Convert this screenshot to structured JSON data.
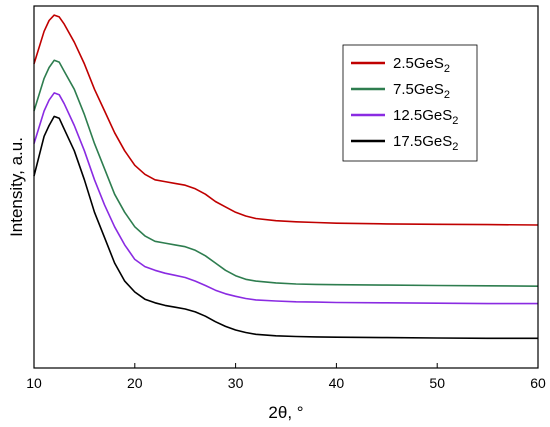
{
  "chart_data": {
    "type": "line",
    "title": "",
    "xlabel": "2θ, °",
    "ylabel": "Intensity, a.u.",
    "xlim": [
      10,
      60
    ],
    "ylim": [
      0,
      1
    ],
    "x_ticks": [
      "10",
      "20",
      "30",
      "40",
      "50",
      "60"
    ],
    "grid": false,
    "legend_position": "top-right",
    "series": [
      {
        "name": "2.5GeS",
        "subscript": "2",
        "color": "#c00000",
        "x": [
          10,
          11,
          11.5,
          12,
          12.5,
          13,
          14,
          15,
          16,
          17,
          18,
          19,
          20,
          21,
          22,
          23,
          24,
          25,
          26,
          27,
          28,
          29,
          30,
          31,
          32,
          34,
          36,
          38,
          40,
          45,
          50,
          55,
          60
        ],
        "y": [
          0.84,
          0.93,
          0.96,
          0.975,
          0.97,
          0.95,
          0.9,
          0.84,
          0.77,
          0.71,
          0.65,
          0.6,
          0.56,
          0.535,
          0.52,
          0.515,
          0.51,
          0.505,
          0.495,
          0.48,
          0.46,
          0.445,
          0.43,
          0.42,
          0.413,
          0.407,
          0.404,
          0.402,
          0.4,
          0.398,
          0.397,
          0.396,
          0.395
        ]
      },
      {
        "name": "7.5GeS",
        "subscript": "2",
        "color": "#2e7d4f",
        "x": [
          10,
          11,
          11.5,
          12,
          12.5,
          13,
          14,
          15,
          16,
          17,
          18,
          19,
          20,
          21,
          22,
          23,
          24,
          25,
          26,
          27,
          28,
          29,
          30,
          31,
          32,
          34,
          36,
          38,
          40,
          45,
          50,
          55,
          60
        ],
        "y": [
          0.71,
          0.8,
          0.83,
          0.85,
          0.845,
          0.82,
          0.77,
          0.7,
          0.62,
          0.55,
          0.48,
          0.43,
          0.39,
          0.365,
          0.35,
          0.345,
          0.34,
          0.335,
          0.325,
          0.31,
          0.29,
          0.27,
          0.255,
          0.245,
          0.24,
          0.235,
          0.232,
          0.231,
          0.23,
          0.229,
          0.228,
          0.227,
          0.226
        ]
      },
      {
        "name": "12.5GeS",
        "subscript": "2",
        "color": "#8a2be2",
        "x": [
          10,
          11,
          11.5,
          12,
          12.5,
          13,
          14,
          15,
          16,
          17,
          18,
          19,
          20,
          21,
          22,
          23,
          24,
          25,
          26,
          27,
          28,
          29,
          30,
          31,
          32,
          34,
          36,
          38,
          40,
          45,
          50,
          55,
          60
        ],
        "y": [
          0.62,
          0.71,
          0.74,
          0.76,
          0.755,
          0.73,
          0.67,
          0.6,
          0.52,
          0.45,
          0.39,
          0.34,
          0.3,
          0.28,
          0.27,
          0.262,
          0.256,
          0.25,
          0.24,
          0.228,
          0.215,
          0.205,
          0.198,
          0.192,
          0.188,
          0.185,
          0.183,
          0.182,
          0.181,
          0.18,
          0.179,
          0.178,
          0.178
        ]
      },
      {
        "name": "17.5GeS",
        "subscript": "2",
        "color": "#000000",
        "x": [
          10,
          11,
          11.5,
          12,
          12.5,
          13,
          14,
          15,
          16,
          17,
          18,
          19,
          20,
          21,
          22,
          23,
          24,
          25,
          26,
          27,
          28,
          29,
          30,
          31,
          32,
          34,
          36,
          38,
          40,
          45,
          50,
          55,
          60
        ],
        "y": [
          0.53,
          0.64,
          0.67,
          0.695,
          0.69,
          0.66,
          0.6,
          0.52,
          0.43,
          0.36,
          0.29,
          0.24,
          0.21,
          0.19,
          0.18,
          0.173,
          0.168,
          0.163,
          0.155,
          0.143,
          0.128,
          0.115,
          0.105,
          0.098,
          0.093,
          0.089,
          0.087,
          0.086,
          0.085,
          0.084,
          0.083,
          0.082,
          0.082
        ]
      }
    ]
  }
}
